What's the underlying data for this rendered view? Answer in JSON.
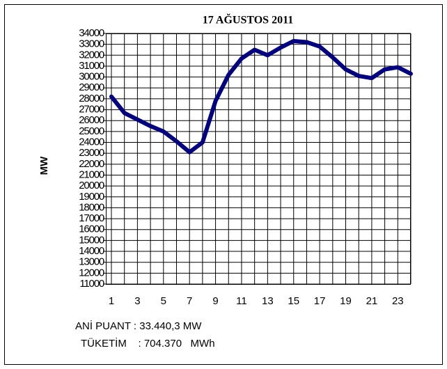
{
  "chart_data": {
    "type": "line",
    "title": "17 AĞUSTOS 2011",
    "y_label": "MW",
    "x": [
      1,
      2,
      3,
      4,
      5,
      6,
      7,
      8,
      9,
      10,
      11,
      12,
      13,
      14,
      15,
      16,
      17,
      18,
      19,
      20,
      21,
      22,
      23,
      24
    ],
    "series": [
      {
        "name": "MW",
        "color": "#000080",
        "values": [
          28200,
          26700,
          26100,
          25500,
          25000,
          24100,
          23100,
          24000,
          27800,
          30200,
          31700,
          32500,
          32000,
          32700,
          33300,
          33200,
          32800,
          31800,
          30700,
          30100,
          29900,
          30700,
          30900,
          30300
        ]
      }
    ],
    "xlim": [
      1,
      24
    ],
    "xticks": [
      1,
      3,
      5,
      7,
      9,
      11,
      13,
      15,
      17,
      19,
      21,
      23
    ],
    "ylim": [
      11000,
      34000
    ],
    "yticks": [
      11000,
      12000,
      13000,
      14000,
      15000,
      16000,
      17000,
      18000,
      19000,
      20000,
      21000,
      22000,
      23000,
      24000,
      25000,
      26000,
      27000,
      28000,
      29000,
      30000,
      31000,
      32000,
      33000,
      34000
    ],
    "grid": true,
    "annotations": [
      "ANİ PUANT : 33.440,3 MW",
      "TÜKETİM    : 704.370   MWh"
    ]
  }
}
